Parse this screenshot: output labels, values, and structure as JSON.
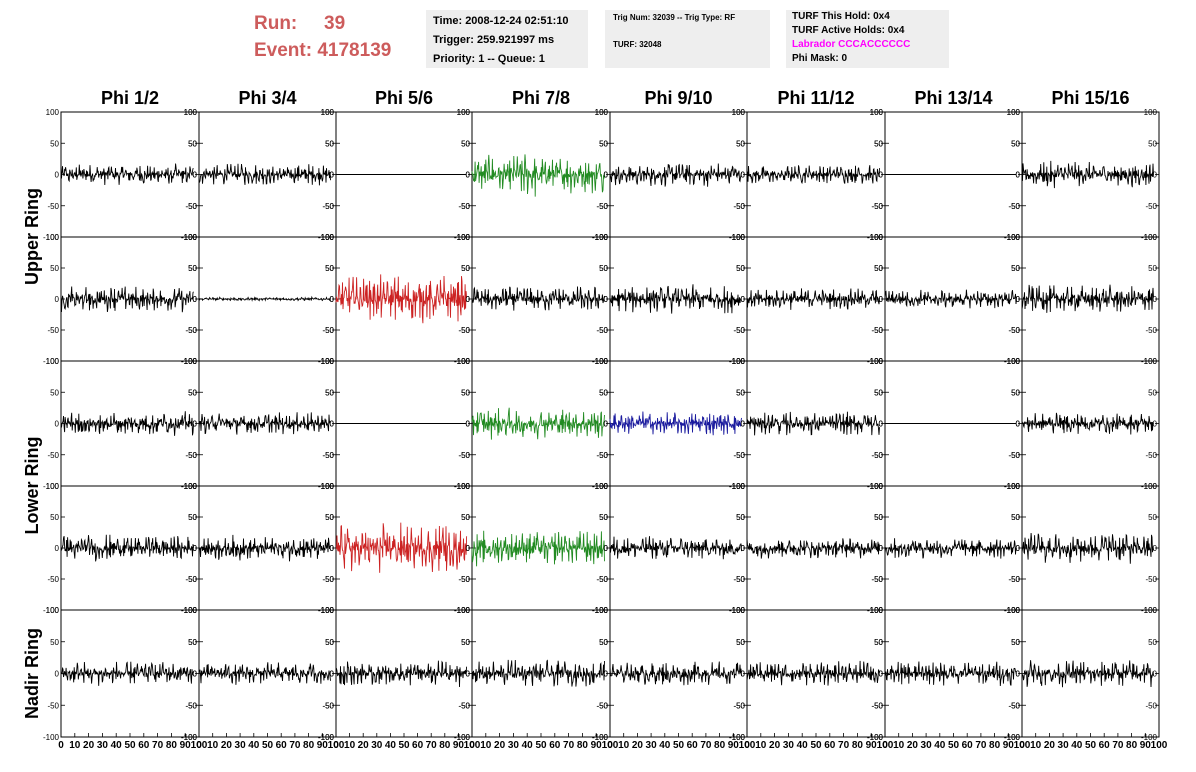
{
  "header": {
    "run_label": "Run:",
    "run_value": "39",
    "event_label": "Event:",
    "event_value": "4178139",
    "time_line": "Time: 2008-12-24 02:51:10",
    "trigger_line": "Trigger: 259.921997 ms",
    "priority_line": "Priority: 1 -- Queue: 1",
    "trig_line": "Trig Num: 32039 -- Trig Type: RF",
    "turf_line": "TURF: 32048",
    "hold_line": "TURF This Hold: 0x4",
    "active_line": "TURF Active Holds: 0x4",
    "labrador_line": "Labrador CCCACCCCCC",
    "phimask_line": "Phi Mask: 0"
  },
  "colors": {
    "header_text": "#cd5c5c",
    "box_bg": "#eeeeee",
    "labrador_text": "#ff00ff",
    "trace_default": "#000000",
    "trace_red": "#cc2222",
    "trace_green": "#228b22",
    "trace_blue": "#1a1a9e"
  },
  "chart_data": {
    "type": "line",
    "column_labels": [
      "Phi 1/2",
      "Phi 3/4",
      "Phi 5/6",
      "Phi 7/8",
      "Phi 9/10",
      "Phi 11/12",
      "Phi 13/14",
      "Phi 15/16"
    ],
    "ring_labels": [
      "Upper Ring",
      "Lower Ring",
      "Nadir Ring"
    ],
    "rows_per_ring": [
      2,
      2,
      1
    ],
    "xlim": [
      0,
      100
    ],
    "ylim": [
      -100,
      100
    ],
    "x_ticks": [
      0,
      10,
      20,
      30,
      40,
      50,
      60,
      70,
      80,
      90,
      100
    ],
    "x_tick_labels": [
      "0",
      "10",
      "20",
      "30",
      "40",
      "50",
      "60",
      "70",
      "80",
      "90",
      "100"
    ],
    "y_ticks": [
      -100,
      -50,
      0,
      50,
      100
    ],
    "y_tick_labels": [
      "-100",
      "-50",
      "0",
      "50",
      "100"
    ],
    "trace_x_range": [
      0,
      96
    ],
    "panels": [
      [
        {
          "color": "black",
          "amp": 18
        },
        {
          "color": "black",
          "amp": 18
        },
        {
          "color": "black",
          "amp": 0
        },
        {
          "color": "green",
          "amp": 32,
          "peak": 45,
          "peak_at": 40
        },
        {
          "color": "black",
          "amp": 20
        },
        {
          "color": "black",
          "amp": 16
        },
        {
          "color": "black",
          "amp": 0
        },
        {
          "color": "black",
          "amp": 22
        }
      ],
      [
        {
          "color": "black",
          "amp": 22
        },
        {
          "color": "black",
          "amp": 3
        },
        {
          "color": "red",
          "amp": 40
        },
        {
          "color": "black",
          "amp": 22
        },
        {
          "color": "black",
          "amp": 24
        },
        {
          "color": "black",
          "amp": 18
        },
        {
          "color": "black",
          "amp": 16
        },
        {
          "color": "black",
          "amp": 24
        }
      ],
      [
        {
          "color": "black",
          "amp": 20
        },
        {
          "color": "black",
          "amp": 18
        },
        {
          "color": "black",
          "amp": 0
        },
        {
          "color": "green",
          "amp": 26
        },
        {
          "color": "blue",
          "amp": 20
        },
        {
          "color": "black",
          "amp": 20
        },
        {
          "color": "black",
          "amp": 0
        },
        {
          "color": "black",
          "amp": 18
        }
      ],
      [
        {
          "color": "black",
          "amp": 22
        },
        {
          "color": "black",
          "amp": 22
        },
        {
          "color": "red",
          "amp": 42
        },
        {
          "color": "green",
          "amp": 30
        },
        {
          "color": "black",
          "amp": 20
        },
        {
          "color": "black",
          "amp": 18
        },
        {
          "color": "black",
          "amp": 18
        },
        {
          "color": "black",
          "amp": 26
        }
      ],
      [
        {
          "color": "black",
          "amp": 20
        },
        {
          "color": "black",
          "amp": 18
        },
        {
          "color": "black",
          "amp": 22
        },
        {
          "color": "black",
          "amp": 22
        },
        {
          "color": "black",
          "amp": 20
        },
        {
          "color": "black",
          "amp": 20
        },
        {
          "color": "black",
          "amp": 20
        },
        {
          "color": "black",
          "amp": 22
        }
      ]
    ]
  }
}
